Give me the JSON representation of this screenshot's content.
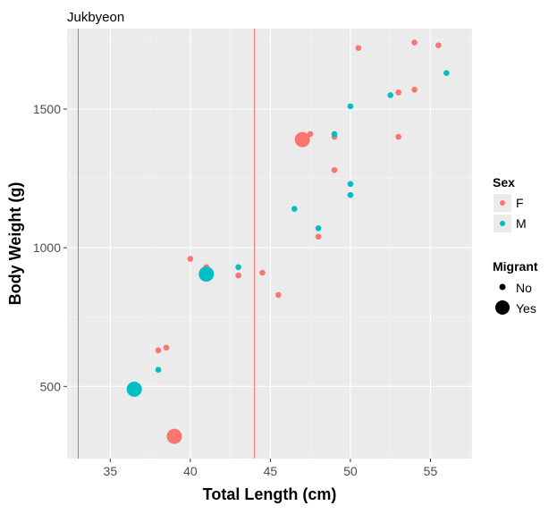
{
  "chart_data": {
    "type": "scatter",
    "title": "Jukbyeon",
    "xlabel": "Total Length (cm)",
    "ylabel": "Body Weight (g)",
    "xlim": [
      32.3,
      57.6
    ],
    "ylim": [
      240,
      1790
    ],
    "xticks": [
      35,
      40,
      45,
      50,
      55
    ],
    "yticks": [
      500,
      1000,
      1500
    ],
    "grid": true,
    "colors": {
      "F": "#F8766D",
      "M": "#00BFC4"
    },
    "vlines": [
      {
        "x": 33.0,
        "color": "#00BFC4"
      },
      {
        "x": 44.0,
        "color": "#F8766D"
      }
    ],
    "legend": {
      "position": "right",
      "sex": {
        "title": "Sex",
        "entries": [
          "F",
          "M"
        ]
      },
      "migrant": {
        "title": "Migrant",
        "entries": [
          "No",
          "Yes"
        ]
      }
    },
    "points": [
      {
        "x": 39.0,
        "y": 320,
        "sex": "F",
        "migrant": "Yes"
      },
      {
        "x": 36.5,
        "y": 490,
        "sex": "M",
        "migrant": "Yes"
      },
      {
        "x": 38.0,
        "y": 560,
        "sex": "M",
        "migrant": "No"
      },
      {
        "x": 38.0,
        "y": 630,
        "sex": "F",
        "migrant": "No"
      },
      {
        "x": 38.5,
        "y": 640,
        "sex": "F",
        "migrant": "No"
      },
      {
        "x": 40.0,
        "y": 960,
        "sex": "F",
        "migrant": "No"
      },
      {
        "x": 41.0,
        "y": 930,
        "sex": "F",
        "migrant": "No"
      },
      {
        "x": 41.0,
        "y": 905,
        "sex": "M",
        "migrant": "Yes"
      },
      {
        "x": 43.0,
        "y": 900,
        "sex": "F",
        "migrant": "No"
      },
      {
        "x": 43.0,
        "y": 930,
        "sex": "M",
        "migrant": "No"
      },
      {
        "x": 44.5,
        "y": 910,
        "sex": "F",
        "migrant": "No"
      },
      {
        "x": 45.5,
        "y": 830,
        "sex": "F",
        "migrant": "No"
      },
      {
        "x": 46.5,
        "y": 1140,
        "sex": "M",
        "migrant": "No"
      },
      {
        "x": 47.0,
        "y": 1390,
        "sex": "F",
        "migrant": "Yes"
      },
      {
        "x": 47.5,
        "y": 1410,
        "sex": "F",
        "migrant": "No"
      },
      {
        "x": 48.0,
        "y": 1040,
        "sex": "F",
        "migrant": "No"
      },
      {
        "x": 48.0,
        "y": 1070,
        "sex": "M",
        "migrant": "No"
      },
      {
        "x": 49.0,
        "y": 1280,
        "sex": "F",
        "migrant": "No"
      },
      {
        "x": 49.0,
        "y": 1400,
        "sex": "F",
        "migrant": "No"
      },
      {
        "x": 49.0,
        "y": 1410,
        "sex": "M",
        "migrant": "No"
      },
      {
        "x": 50.0,
        "y": 1190,
        "sex": "M",
        "migrant": "No"
      },
      {
        "x": 50.0,
        "y": 1230,
        "sex": "M",
        "migrant": "No"
      },
      {
        "x": 50.0,
        "y": 1510,
        "sex": "M",
        "migrant": "No"
      },
      {
        "x": 50.5,
        "y": 1720,
        "sex": "F",
        "migrant": "No"
      },
      {
        "x": 52.5,
        "y": 1550,
        "sex": "M",
        "migrant": "No"
      },
      {
        "x": 53.0,
        "y": 1560,
        "sex": "F",
        "migrant": "No"
      },
      {
        "x": 53.0,
        "y": 1400,
        "sex": "F",
        "migrant": "No"
      },
      {
        "x": 54.0,
        "y": 1740,
        "sex": "F",
        "migrant": "No"
      },
      {
        "x": 54.0,
        "y": 1570,
        "sex": "F",
        "migrant": "No"
      },
      {
        "x": 55.5,
        "y": 1730,
        "sex": "F",
        "migrant": "No"
      },
      {
        "x": 56.0,
        "y": 1630,
        "sex": "M",
        "migrant": "No"
      }
    ]
  }
}
